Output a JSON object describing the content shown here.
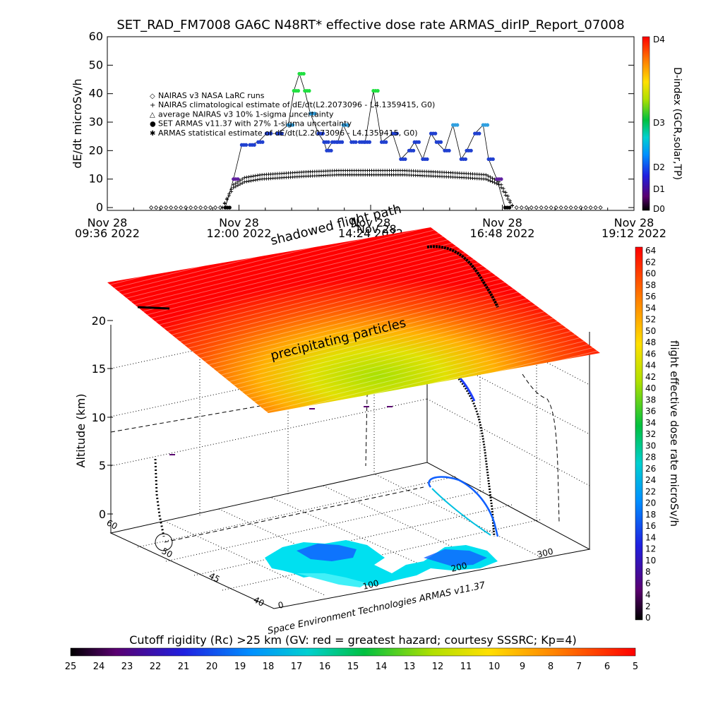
{
  "chart_data": [
    {
      "type": "line",
      "title": "SET_RAD_FM7008   GA6C N48RT* effective dose rate ARMAS_dirIP_Report_07008",
      "ylabel": "dE/dt microSv/h",
      "ylim": [
        0,
        60
      ],
      "yticks": [
        0,
        10,
        20,
        30,
        40,
        50,
        60
      ],
      "xtick_labels": [
        [
          "Nov 28",
          "09:36 2022"
        ],
        [
          "Nov 28",
          "12:00 2022"
        ],
        [
          "Nov 28",
          "14:24 2022"
        ],
        [
          "Nov 28",
          "16:48 2022"
        ],
        [
          "Nov 28",
          "19:12 2022"
        ]
      ],
      "legend": [
        {
          "marker": "◇",
          "text": "NAIRAS v3 NASA LaRC runs"
        },
        {
          "marker": "+",
          "text": "NAIRAS climatological estimate of dE/dt(L2.2073096 - L4.1359415, G0)"
        },
        {
          "marker": "△",
          "text": "average NAIRAS v3 10% 1-sigma uncertainty"
        },
        {
          "marker": "●",
          "text": "SET ARMAS v11.37 with 27% 1-sigma uncertainty"
        },
        {
          "marker": "✱",
          "text": "ARMAS statistical estimate of dE/dt(L2.2073096 - L4.1359415, G0)"
        }
      ],
      "legend_position": "upper-left",
      "series": [
        {
          "name": "SET ARMAS v11.37 with 27% 1-sigma uncertainty",
          "x_hours": [
            11.75,
            11.9,
            12.05,
            12.2,
            12.35,
            12.5,
            12.7,
            12.9,
            13.0,
            13.1,
            13.2,
            13.3,
            13.45,
            13.55,
            13.6,
            13.7,
            13.8,
            13.9,
            14.05,
            14.2,
            14.3,
            14.45,
            14.6,
            14.8,
            14.95,
            15.1,
            15.2,
            15.35,
            15.5,
            15.6,
            15.75,
            15.9,
            16.05,
            16.15,
            16.3,
            16.45,
            16.55,
            16.7,
            16.85
          ],
          "y": [
            0,
            10,
            22,
            22,
            23,
            26,
            26,
            29,
            41,
            47,
            41,
            33,
            26,
            23,
            20,
            23,
            23,
            29,
            23,
            23,
            23,
            41,
            23,
            26,
            17,
            20,
            23,
            17,
            26,
            23,
            20,
            29,
            17,
            20,
            26,
            29,
            17,
            10,
            0
          ],
          "colorscale": "D-index"
        },
        {
          "name": "ARMAS statistical estimate of dE/dt(L2.2073096 - L4.1359415, G0)",
          "x_hours": [
            11.7,
            11.9,
            12.1,
            12.4,
            12.8,
            13.2,
            13.8,
            14.4,
            15.0,
            15.6,
            16.1,
            16.5,
            16.75,
            16.9,
            17.0
          ],
          "y": [
            0,
            8,
            10.5,
            11.5,
            12,
            12.5,
            13,
            13,
            13,
            12.5,
            12,
            11.5,
            9,
            4,
            0
          ]
        },
        {
          "name": "NAIRAS climatological estimate of dE/dt(L2.2073096 - L4.1359415, G0)",
          "x_hours": [
            11.7,
            11.9,
            12.1,
            12.4,
            12.8,
            13.2,
            13.8,
            14.4,
            15.0,
            15.6,
            16.1,
            16.5,
            16.75,
            16.9,
            17.0
          ],
          "y": [
            0,
            7,
            9,
            10,
            10.5,
            11,
            11.5,
            11.5,
            11.5,
            11,
            10.5,
            10,
            8,
            3,
            0
          ]
        },
        {
          "name": "NAIRAS v3 NASA LaRC runs",
          "x_hours": [
            10.4,
            11.0,
            11.6,
            11.7,
            17.0,
            17.5,
            18.0,
            18.6
          ],
          "y": [
            0,
            0,
            0,
            0,
            0,
            0,
            0,
            0
          ]
        }
      ],
      "right_axis": {
        "label": "D-index (GCR,solar,TP)",
        "ticks": [
          "D0",
          "D1",
          "D2",
          "D3",
          "D4"
        ],
        "tick_values": [
          0,
          1,
          2,
          3,
          4
        ]
      },
      "grid": false
    },
    {
      "type": "3d-surface",
      "zlabel": "Altitude (km)",
      "zticks": [
        "0",
        "5",
        "10",
        "15",
        "20"
      ],
      "y_ticks": [
        "60",
        "50",
        "45",
        "40"
      ],
      "x_ticks": [
        "0",
        "100",
        "200",
        "300"
      ],
      "annotations": [
        "shadowed flight path",
        "precipitating particles",
        "Nov 28"
      ],
      "credit": "Space Environment Technologies ARMAS v11.37",
      "colorbar_right": {
        "label": "flight effective dose rate microSv/h",
        "min": 0,
        "max": 64,
        "ticks": [
          "64",
          "62",
          "60",
          "58",
          "56",
          "54",
          "52",
          "50",
          "48",
          "46",
          "44",
          "42",
          "40",
          "38",
          "36",
          "34",
          "32",
          "30",
          "28",
          "26",
          "24",
          "22",
          "20",
          "18",
          "16",
          "14",
          "12",
          "10",
          "8",
          "6",
          "4",
          "2",
          "0"
        ]
      },
      "colorbar_bottom": {
        "title": "Cutoff rigidity (Rc) >25 km (GV: red = greatest hazard; courtesy SSSRC; Kp=4)",
        "ticks": [
          "25",
          "24",
          "23",
          "22",
          "21",
          "20",
          "19",
          "18",
          "17",
          "16",
          "15",
          "14",
          "13",
          "12",
          "11",
          "10",
          "9",
          "8",
          "7",
          "6",
          "5"
        ]
      }
    }
  ]
}
